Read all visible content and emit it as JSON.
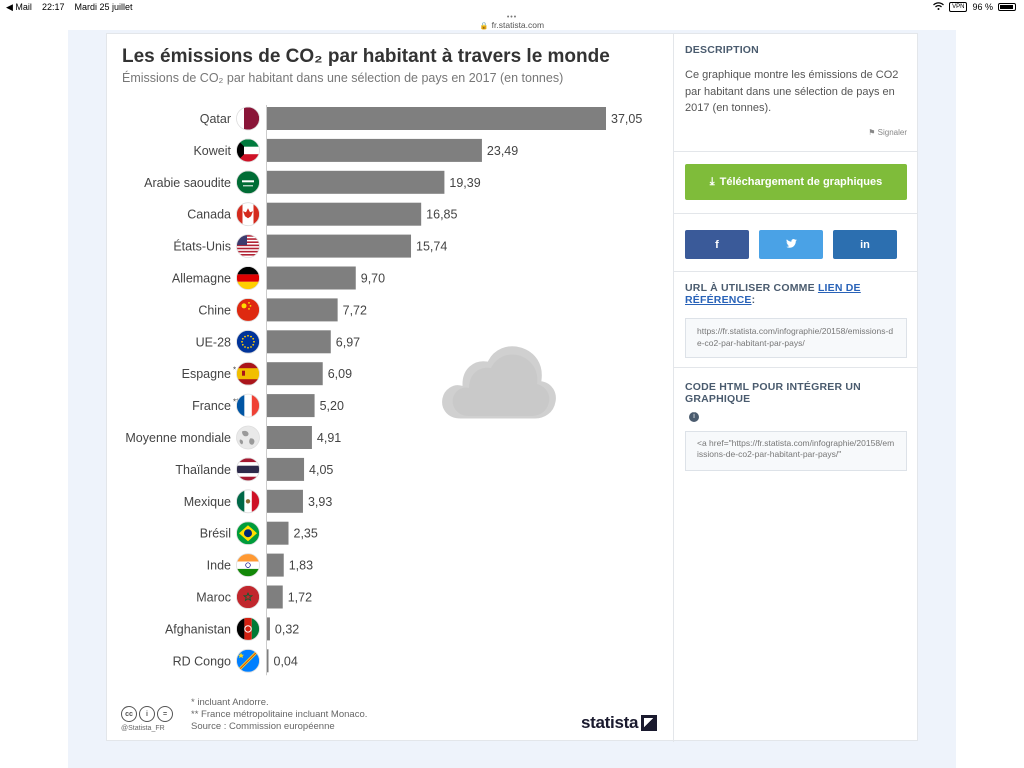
{
  "status_bar": {
    "back_app": "◀ Mail",
    "time": "22:17",
    "date": "Mardi 25 juillet",
    "vpn": "VPN",
    "battery": "96 %"
  },
  "url_bar": {
    "domain": "fr.statista.com"
  },
  "chart_data": {
    "type": "bar",
    "orientation": "horizontal",
    "title": "Les émissions de CO₂ par habitant à travers le monde",
    "subtitle": "Émissions de CO₂ par habitant dans une sélection de pays en 2017 (en tonnes)",
    "categories": [
      "Qatar",
      "Koweit",
      "Arabie saoudite",
      "Canada",
      "États-Unis",
      "Allemagne",
      "Chine",
      "UE-28",
      "Espagne",
      "France",
      "Moyenne mondiale",
      "Thaïlande",
      "Mexique",
      "Brésil",
      "Inde",
      "Maroc",
      "Afghanistan",
      "RD Congo"
    ],
    "category_marks": [
      "",
      "",
      "",
      "",
      "",
      "",
      "",
      "",
      "*",
      "**",
      "",
      "",
      "",
      "",
      "",
      "",
      "",
      ""
    ],
    "values": [
      37.05,
      23.49,
      19.39,
      16.85,
      15.74,
      9.7,
      7.72,
      6.97,
      6.09,
      5.2,
      4.91,
      4.05,
      3.93,
      2.35,
      1.83,
      1.72,
      0.32,
      0.04
    ],
    "value_labels": [
      "37,05",
      "23,49",
      "19,39",
      "16,85",
      "15,74",
      "9,70",
      "7,72",
      "6,97",
      "6,09",
      "5,20",
      "4,91",
      "4,05",
      "3,93",
      "2,35",
      "1,83",
      "1,72",
      "0,32",
      "0,04"
    ],
    "flag_icons": [
      "flag-qatar-icon",
      "flag-kuwait-icon",
      "flag-saudi-arabia-icon",
      "flag-canada-icon",
      "flag-usa-icon",
      "flag-germany-icon",
      "flag-china-icon",
      "flag-eu-icon",
      "flag-spain-icon",
      "flag-france-icon",
      "globe-icon",
      "flag-thailand-icon",
      "flag-mexico-icon",
      "flag-brazil-icon",
      "flag-india-icon",
      "flag-morocco-icon",
      "flag-afghanistan-icon",
      "flag-dr-congo-icon"
    ],
    "xlim": [
      0,
      37.05
    ],
    "bar_color": "#7f7f7f",
    "grid": false,
    "legend": "none"
  },
  "footnotes": {
    "note1": "*   incluant Andorre.",
    "note2": "** France métropolitaine incluant Monaco.",
    "source": "Source : Commission européenne"
  },
  "branding": {
    "cc_handle": "@Statista_FR",
    "logo": "statista"
  },
  "sidebar": {
    "description_heading": "DESCRIPTION",
    "description_text": "Ce graphique montre les émissions de CO2 par habitant dans une sélection de pays en 2017 (en tonnes).",
    "report_label": "Signaler",
    "download_label": "Téléchargement de graphiques",
    "download_color": "#7fbc3a",
    "social": {
      "facebook": "f",
      "twitter": "🐦",
      "linkedin": "in"
    },
    "url_heading_prefix": "URL À UTILISER COMME ",
    "url_heading_link": "LIEN DE RÉFÉRENCE",
    "url_heading_suffix": ":",
    "url_value": "https://fr.statista.com/infographie/20158/emissions-de-co2-par-habitant-par-pays/",
    "embed_heading": "CODE HTML POUR INTÉGRER UN GRAPHIQUE",
    "embed_value": "<a href=\"https://fr.statista.com/infographie/20158/emissions-de-co2-par-habitant-par-pays/\""
  }
}
